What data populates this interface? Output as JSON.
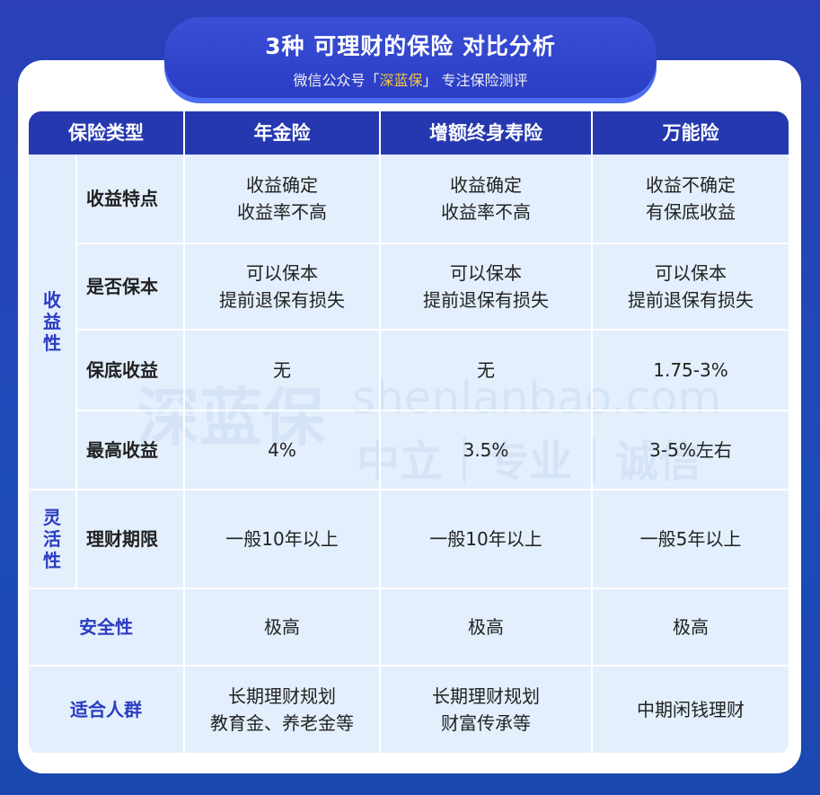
{
  "banner": {
    "title": "3种  可理财的保险  对比分析",
    "subtitle_prefix": "微信公众号「",
    "subtitle_brand": "深蓝保",
    "subtitle_suffix": "」 专注保险测评"
  },
  "colors": {
    "background": "#2a3fb8",
    "header": "#2638b0",
    "cell": "#e3effd",
    "group_text": "#2a3cc0",
    "brand_highlight": "#f6c83a"
  },
  "table": {
    "headers": [
      "保险类型",
      "年金险",
      "增额终身寿险",
      "万能险"
    ],
    "groups": {
      "income": "收\n益\n性",
      "flex": "灵\n活\n性"
    },
    "rows": [
      {
        "label": "收益特点",
        "values": [
          "收益确定\n收益率不高",
          "收益确定\n收益率不高",
          "收益不确定\n有保底收益"
        ]
      },
      {
        "label": "是否保本",
        "values": [
          "可以保本\n提前退保有损失",
          "可以保本\n提前退保有损失",
          "可以保本\n提前退保有损失"
        ]
      },
      {
        "label": "保底收益",
        "values": [
          "无",
          "无",
          "1.75-3%"
        ]
      },
      {
        "label": "最高收益",
        "values": [
          "4%",
          "3.5%",
          "3-5%左右"
        ]
      },
      {
        "label": "理财期限",
        "values": [
          "一般10年以上",
          "一般10年以上",
          "一般5年以上"
        ]
      },
      {
        "label": "安全性",
        "values": [
          "极高",
          "极高",
          "极高"
        ]
      },
      {
        "label": "适合人群",
        "values": [
          "长期理财规划\n教育金、养老金等",
          "长期理财规划\n财富传承等",
          "中期闲钱理财"
        ]
      }
    ]
  },
  "watermark": {
    "logo": "深蓝保",
    "url": "shenlanbao.com",
    "slogan": "中立｜专业｜诚信"
  }
}
